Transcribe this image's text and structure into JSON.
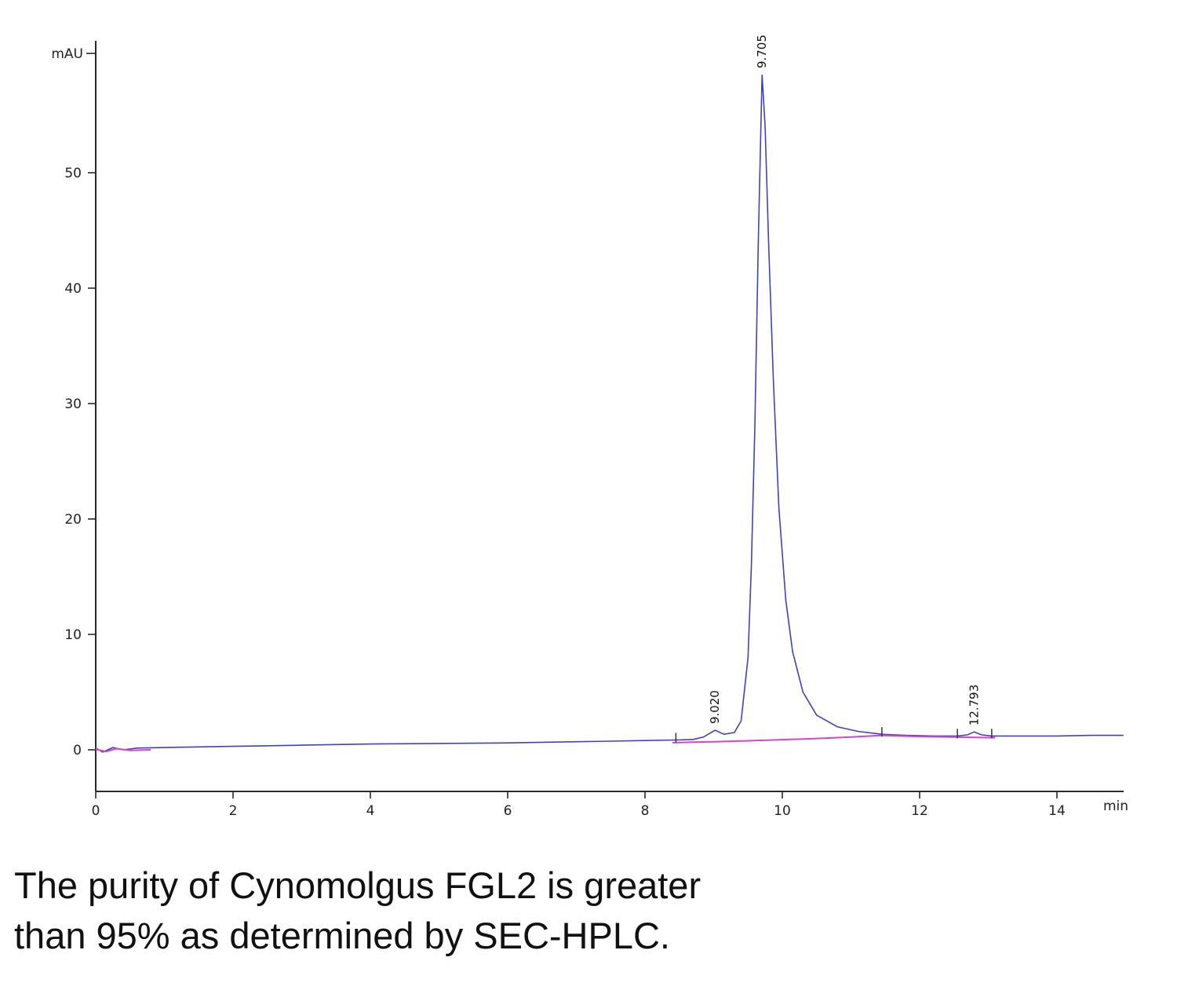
{
  "caption": {
    "line1": "The purity of Cynomolgus FGL2 is greater",
    "line2": "than 95% as determined by SEC-HPLC."
  },
  "chart_data": {
    "type": "line",
    "title": "",
    "xlabel": "min",
    "ylabel": "mAU",
    "xlim": [
      0,
      15
    ],
    "ylim": [
      -3.6,
      61
    ],
    "x_ticks": [
      0,
      2,
      4,
      6,
      8,
      10,
      12,
      14
    ],
    "y_ticks": [
      0,
      10,
      20,
      30,
      40,
      50
    ],
    "grid": false,
    "legend": "none",
    "colors": {
      "signal": "#4040c8",
      "baseline": "#d943c8",
      "axis": "#2a2a2a",
      "label": "#111111"
    },
    "peaks": [
      {
        "label": "9.020",
        "retention_time": 9.02,
        "height_mAU": 1.7
      },
      {
        "label": "9.705",
        "retention_time": 9.705,
        "height_mAU": 58.5
      },
      {
        "label": "12.793",
        "retention_time": 12.793,
        "height_mAU": 1.55
      }
    ],
    "integration_marks": [
      [
        8.45,
        0.85
      ],
      [
        11.45,
        1.35
      ],
      [
        12.55,
        1.2
      ],
      [
        13.05,
        1.2
      ]
    ],
    "series": [
      {
        "name": "uv-signal",
        "color": "#4040c8",
        "width": 1.6,
        "points": [
          [
            0,
            0.15
          ],
          [
            0.1,
            -0.2
          ],
          [
            0.25,
            0.2
          ],
          [
            0.4,
            0.0
          ],
          [
            0.6,
            0.15
          ],
          [
            1,
            0.2
          ],
          [
            1.5,
            0.25
          ],
          [
            2,
            0.3
          ],
          [
            3,
            0.4
          ],
          [
            4,
            0.5
          ],
          [
            5,
            0.55
          ],
          [
            6,
            0.6
          ],
          [
            7,
            0.7
          ],
          [
            7.5,
            0.75
          ],
          [
            8,
            0.8
          ],
          [
            8.45,
            0.85
          ],
          [
            8.7,
            0.9
          ],
          [
            8.85,
            1.1
          ],
          [
            9.02,
            1.7
          ],
          [
            9.15,
            1.35
          ],
          [
            9.3,
            1.5
          ],
          [
            9.4,
            2.5
          ],
          [
            9.5,
            8
          ],
          [
            9.55,
            16
          ],
          [
            9.6,
            28
          ],
          [
            9.65,
            44
          ],
          [
            9.705,
            58.5
          ],
          [
            9.75,
            54
          ],
          [
            9.8,
            44
          ],
          [
            9.87,
            32
          ],
          [
            9.95,
            21
          ],
          [
            10.05,
            13
          ],
          [
            10.15,
            8.5
          ],
          [
            10.3,
            5
          ],
          [
            10.5,
            3
          ],
          [
            10.8,
            2
          ],
          [
            11.1,
            1.6
          ],
          [
            11.45,
            1.35
          ],
          [
            11.8,
            1.25
          ],
          [
            12.2,
            1.2
          ],
          [
            12.55,
            1.2
          ],
          [
            12.7,
            1.3
          ],
          [
            12.793,
            1.55
          ],
          [
            12.9,
            1.3
          ],
          [
            13.05,
            1.2
          ],
          [
            13.5,
            1.2
          ],
          [
            14,
            1.2
          ],
          [
            14.5,
            1.25
          ],
          [
            14.97,
            1.25
          ]
        ]
      },
      {
        "name": "baseline-left",
        "color": "#d943c8",
        "width": 2,
        "points": [
          [
            0,
            0.05
          ],
          [
            0.15,
            -0.15
          ],
          [
            0.3,
            0.1
          ],
          [
            0.5,
            -0.05
          ],
          [
            0.8,
            0.0
          ]
        ]
      },
      {
        "name": "integration-baseline",
        "color": "#d943c8",
        "width": 2,
        "points": [
          [
            8.4,
            0.62
          ],
          [
            9,
            0.7
          ],
          [
            9.5,
            0.78
          ],
          [
            10,
            0.88
          ],
          [
            10.5,
            0.98
          ],
          [
            11,
            1.1
          ],
          [
            11.45,
            1.25
          ],
          [
            12,
            1.15
          ],
          [
            12.5,
            1.1
          ],
          [
            13.1,
            1.05
          ]
        ]
      }
    ]
  }
}
